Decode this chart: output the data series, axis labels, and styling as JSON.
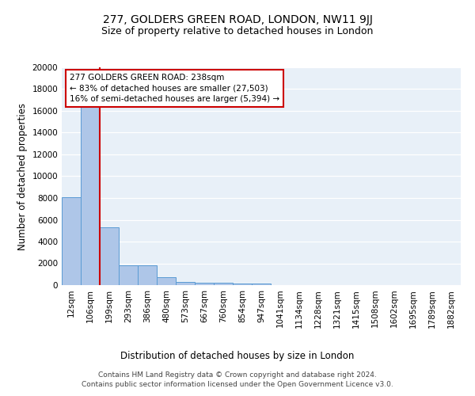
{
  "title": "277, GOLDERS GREEN ROAD, LONDON, NW11 9JJ",
  "subtitle": "Size of property relative to detached houses in London",
  "xlabel": "Distribution of detached houses by size in London",
  "ylabel": "Number of detached properties",
  "categories": [
    "12sqm",
    "106sqm",
    "199sqm",
    "293sqm",
    "386sqm",
    "480sqm",
    "573sqm",
    "667sqm",
    "760sqm",
    "854sqm",
    "947sqm",
    "1041sqm",
    "1134sqm",
    "1228sqm",
    "1321sqm",
    "1415sqm",
    "1508sqm",
    "1602sqm",
    "1695sqm",
    "1789sqm",
    "1882sqm"
  ],
  "values": [
    8100,
    16600,
    5300,
    1800,
    1800,
    700,
    300,
    230,
    200,
    180,
    150,
    0,
    0,
    0,
    0,
    0,
    0,
    0,
    0,
    0,
    0
  ],
  "bar_color": "#aec6e8",
  "bar_edge_color": "#5a9bd4",
  "annotation_text": "277 GOLDERS GREEN ROAD: 238sqm\n← 83% of detached houses are smaller (27,503)\n16% of semi-detached houses are larger (5,394) →",
  "annotation_box_color": "#ffffff",
  "annotation_box_edge_color": "#cc0000",
  "vline_color": "#cc0000",
  "ylim": [
    0,
    20000
  ],
  "yticks": [
    0,
    2000,
    4000,
    6000,
    8000,
    10000,
    12000,
    14000,
    16000,
    18000,
    20000
  ],
  "footer": "Contains HM Land Registry data © Crown copyright and database right 2024.\nContains public sector information licensed under the Open Government Licence v3.0.",
  "bg_color": "#e8f0f8",
  "title_fontsize": 10,
  "subtitle_fontsize": 9,
  "tick_fontsize": 7.5,
  "ylabel_fontsize": 8.5,
  "xlabel_fontsize": 8.5,
  "annotation_fontsize": 7.5,
  "footer_fontsize": 6.5
}
